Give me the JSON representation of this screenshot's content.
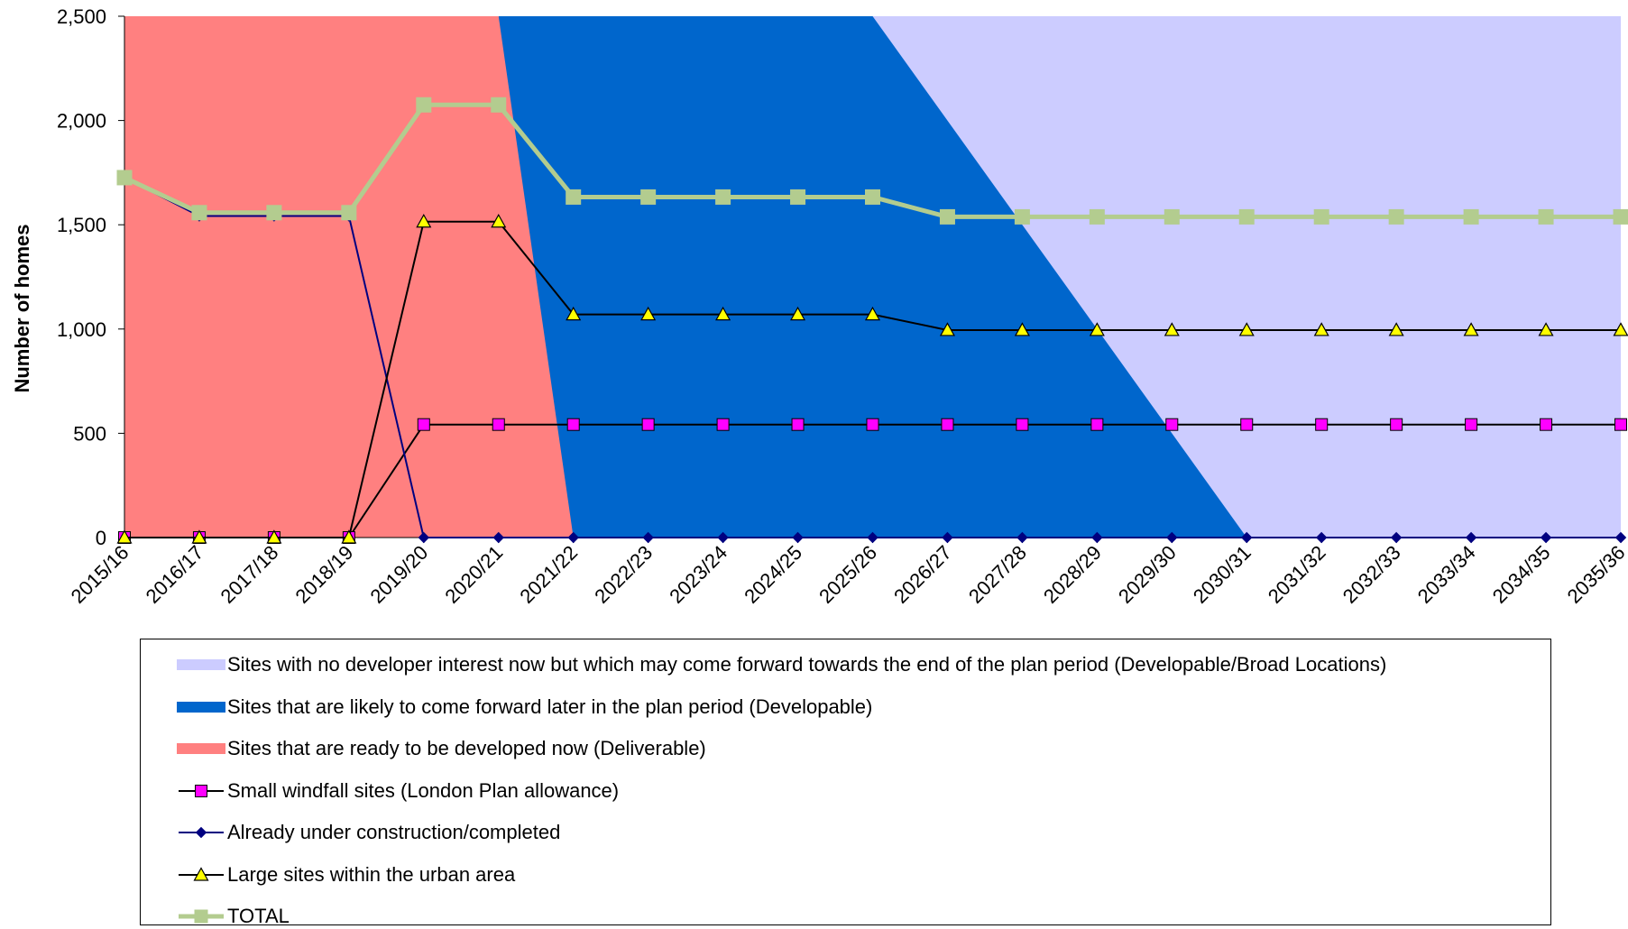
{
  "chart_data": {
    "type": "line",
    "ylabel": "Number of homes",
    "xlabel": "",
    "ylim": [
      0,
      2500
    ],
    "yticks": [
      0,
      500,
      1000,
      1500,
      2000,
      2500
    ],
    "ytick_labels": [
      "0",
      "500",
      "1,000",
      "1,500",
      "2,000",
      "2,500"
    ],
    "categories": [
      "2015/16",
      "2016/17",
      "2017/18",
      "2018/19",
      "2019/20",
      "2020/21",
      "2021/22",
      "2022/23",
      "2023/24",
      "2024/25",
      "2025/26",
      "2026/27",
      "2027/28",
      "2028/29",
      "2029/30",
      "2030/31",
      "2031/32",
      "2032/33",
      "2033/34",
      "2034/35",
      "2035/36"
    ],
    "grid": false,
    "legend_position": "bottom",
    "areas": [
      {
        "name": "Sites with no developer interest now but which may come forward towards the end of the plan period (Developable/Broad Locations)",
        "color": "#ccccff",
        "values": [
          0,
          0,
          0,
          0,
          0,
          0,
          0,
          0,
          0,
          0,
          2500,
          2500,
          2500,
          2500,
          2500,
          2500,
          2500,
          2500,
          2500,
          2500,
          2500
        ]
      },
      {
        "name": "Sites that are likely to come forward later in the plan period (Developable)",
        "color": "#0066cc",
        "values": [
          0,
          0,
          0,
          0,
          0,
          2500,
          2500,
          2500,
          2500,
          2500,
          2500,
          2000,
          1500,
          1000,
          500,
          0,
          0,
          0,
          0,
          0,
          0
        ]
      },
      {
        "name": "Sites that are ready to be developed now (Deliverable)",
        "color": "#ff8080",
        "values": [
          2500,
          2500,
          2500,
          2500,
          2500,
          2500,
          0,
          0,
          0,
          0,
          0,
          0,
          0,
          0,
          0,
          0,
          0,
          0,
          0,
          0,
          0
        ]
      }
    ],
    "series": [
      {
        "name": "Small windfall sites (London Plan allowance)",
        "color": "#000000",
        "marker": "square",
        "marker_color": "#ff00ff",
        "values": [
          0,
          0,
          0,
          0,
          542,
          542,
          542,
          542,
          542,
          542,
          542,
          542,
          542,
          542,
          542,
          542,
          542,
          542,
          542,
          542,
          542
        ]
      },
      {
        "name": "Already under construction/completed",
        "color": "#000080",
        "marker": "diamond",
        "marker_color": "#000080",
        "values": [
          1726,
          1542,
          1542,
          1542,
          0,
          0,
          0,
          0,
          0,
          0,
          0,
          0,
          0,
          0,
          0,
          0,
          0,
          0,
          0,
          0,
          0
        ]
      },
      {
        "name": "Large sites within the urban area",
        "color": "#000000",
        "marker": "triangle",
        "marker_color": "#ffff00",
        "values": [
          0,
          0,
          0,
          0,
          1515,
          1515,
          1070,
          1070,
          1070,
          1070,
          1070,
          995,
          995,
          995,
          995,
          995,
          995,
          995,
          995,
          995,
          995
        ]
      },
      {
        "name": "TOTAL",
        "color": "#b3cc8f",
        "marker": "square",
        "marker_color": "#b3cc8f",
        "values": [
          1726,
          1558,
          1558,
          1558,
          2075,
          2075,
          1633,
          1633,
          1633,
          1633,
          1633,
          1538,
          1538,
          1538,
          1538,
          1538,
          1538,
          1538,
          1538,
          1538,
          1538
        ]
      }
    ]
  }
}
